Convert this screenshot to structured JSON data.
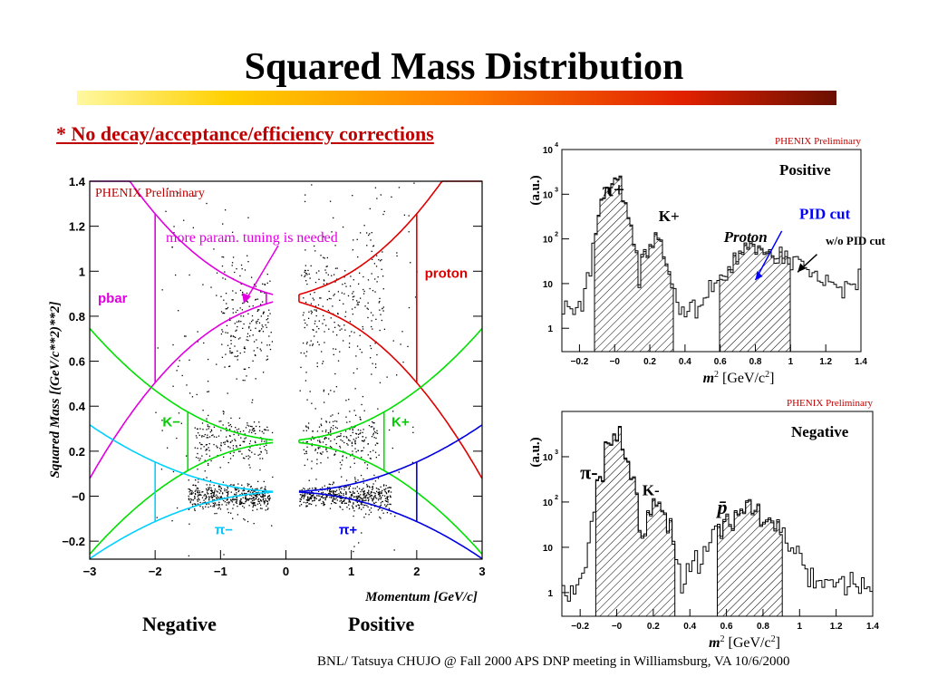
{
  "slide": {
    "title": "Squared Mass Distribution",
    "note": "* No decay/acceptance/efficiency corrections",
    "footer": "BNL/ Tatsuya CHUJO @ Fall 2000 APS DNP meeting in Williamsburg, VA  10/6/2000",
    "colors": {
      "note": "#c00000",
      "bar_start": "#fff8a0",
      "bar_end": "#6a1000"
    }
  },
  "chart_data": [
    {
      "type": "scatter",
      "ylabel": "Squared Mass [(GeV/c**2)**2]",
      "xlabel": "Momentum [GeV/c]",
      "xlim": [
        -3,
        3
      ],
      "ylim": [
        -0.28,
        1.4
      ],
      "xticks": [
        "−3",
        "−2",
        "−1",
        "0",
        "1",
        "2",
        "3"
      ],
      "yticks": [
        "−0.2",
        "−0",
        "0.2",
        "0.4",
        "0.6",
        "0.8",
        "1",
        "1.2",
        "1.4"
      ],
      "preliminary": "PHENIX Preliminary",
      "annotation": "more param. tuning is needed",
      "below_labels": {
        "left": "Negative",
        "right": "Positive"
      },
      "band_labels": [
        {
          "text": "pbar",
          "x": -2.65,
          "y": 0.86,
          "color": "#e000e0"
        },
        {
          "text": "proton",
          "x": 2.45,
          "y": 0.97,
          "color": "#e00000"
        },
        {
          "text": "K−",
          "x": -1.75,
          "y": 0.31,
          "color": "#00cc00"
        },
        {
          "text": "K+",
          "x": 1.75,
          "y": 0.31,
          "color": "#00cc00"
        },
        {
          "text": "π−",
          "x": -0.95,
          "y": -0.17,
          "color": "#00c8ff"
        },
        {
          "text": "π+",
          "x": 0.95,
          "y": -0.17,
          "color": "#0000ff"
        }
      ],
      "colors": {
        "pbar": "#e000e0",
        "proton": "#e00000",
        "kaon": "#00e000",
        "pi_minus": "#00d0ff",
        "pi_plus": "#0000e0"
      },
      "pid_cuts": [
        {
          "particle": "pbar",
          "p_range": [
            -2,
            -0.3
          ],
          "mass2": 0.88
        },
        {
          "particle": "proton",
          "p_range": [
            0.2,
            2
          ],
          "mass2": 0.88
        },
        {
          "particle": "K-",
          "p_range": [
            -1.5,
            -0.3
          ],
          "mass2": 0.244
        },
        {
          "particle": "K+",
          "p_range": [
            0.2,
            1.5
          ],
          "mass2": 0.244
        },
        {
          "particle": "pi-",
          "p_range": [
            -2,
            -0.2
          ],
          "mass2": 0.0195
        },
        {
          "particle": "pi+",
          "p_range": [
            0.2,
            2
          ],
          "mass2": 0.0195
        }
      ],
      "point_clusters": [
        {
          "p_range": [
            -1.5,
            -0.25
          ],
          "mass2": 0.0,
          "spread": 0.02,
          "count": 450
        },
        {
          "p_range": [
            0.2,
            1.6
          ],
          "mass2": 0.0,
          "spread": 0.02,
          "count": 500
        },
        {
          "p_range": [
            -1.4,
            -0.25
          ],
          "mass2": 0.245,
          "spread": 0.04,
          "count": 200
        },
        {
          "p_range": [
            0.25,
            1.4
          ],
          "mass2": 0.245,
          "spread": 0.04,
          "count": 220
        },
        {
          "p_range": [
            -1.0,
            -0.25
          ],
          "mass2": 0.8,
          "spread": 0.1,
          "count": 170
        },
        {
          "p_range": [
            0.25,
            1.5
          ],
          "mass2": 0.85,
          "spread": 0.12,
          "count": 240
        },
        {
          "p_range": [
            -2.0,
            2.0
          ],
          "mass2": 0.55,
          "spread": 0.45,
          "count": 300
        }
      ]
    },
    {
      "type": "histogram",
      "title": "Positive",
      "preliminary": "PHENIX Preliminary",
      "ylabel": "(a.u.)",
      "xlabel": "m2 [GeV/c2]",
      "xlim": [
        -0.3,
        1.4
      ],
      "ylim_log": [
        0.3,
        10000
      ],
      "xticks": [
        "−0.2",
        "−0",
        "0.2",
        "0.4",
        "0.6",
        "0.8",
        "1",
        "1.2",
        "1.4"
      ],
      "yticks": [
        "1",
        "10",
        "10^2",
        "10^3",
        "10^4"
      ],
      "labels": [
        {
          "text": "π+",
          "x": -0.07,
          "y": 900,
          "color": "#000"
        },
        {
          "text": "K+",
          "x": 0.25,
          "y": 250,
          "color": "#000"
        },
        {
          "text": "Proton",
          "x": 0.62,
          "y": 85,
          "color": "#000"
        },
        {
          "text": "PID cut",
          "x": 1.05,
          "y": 280,
          "color": "#0000ff"
        },
        {
          "text": "w/o PID cut",
          "x": 1.2,
          "y": 75,
          "color": "#000"
        }
      ],
      "peaks": [
        {
          "mu": -0.005,
          "sigma": 0.045,
          "amp": 2000
        },
        {
          "mu": 0.235,
          "sigma": 0.045,
          "amp": 95
        },
        {
          "mu": 0.85,
          "sigma": 0.13,
          "amp": 60
        }
      ],
      "background": [
        {
          "x0": -0.3,
          "x1": 1.4,
          "level": 2
        },
        {
          "x0": 0.9,
          "x1": 1.4,
          "level": 10
        }
      ],
      "cut_ranges": [
        [
          -0.12,
          0.12
        ],
        [
          0.12,
          0.34
        ],
        [
          0.6,
          1.0
        ]
      ]
    },
    {
      "type": "histogram",
      "title": "Negative",
      "preliminary": "PHENIX Preliminary",
      "ylabel": "(a.u.)",
      "xlabel": "m2 [GeV/c2]",
      "xlim": [
        -0.3,
        1.4
      ],
      "ylim_log": [
        0.3,
        10000
      ],
      "xticks": [
        "−0.2",
        "−0",
        "0.2",
        "0.4",
        "0.6",
        "0.8",
        "1",
        "1.2",
        "1.4"
      ],
      "yticks": [
        "1",
        "10",
        "10^2",
        "10^3"
      ],
      "labels": [
        {
          "text": "π-",
          "x": -0.2,
          "y": 320,
          "color": "#000"
        },
        {
          "text": "K-",
          "x": 0.14,
          "y": 140,
          "color": "#000"
        },
        {
          "text": "p̄",
          "x": 0.55,
          "y": 55,
          "color": "#000"
        }
      ],
      "peaks": [
        {
          "mu": -0.005,
          "sigma": 0.045,
          "amp": 2400
        },
        {
          "mu": 0.225,
          "sigma": 0.045,
          "amp": 85
        },
        {
          "mu": 0.73,
          "sigma": 0.12,
          "amp": 60
        }
      ],
      "background": [
        {
          "x0": -0.3,
          "x1": 1.4,
          "level": 1.5
        }
      ],
      "cut_ranges": [
        [
          -0.12,
          0.12
        ],
        [
          0.12,
          0.32
        ],
        [
          0.55,
          0.9
        ]
      ]
    }
  ]
}
